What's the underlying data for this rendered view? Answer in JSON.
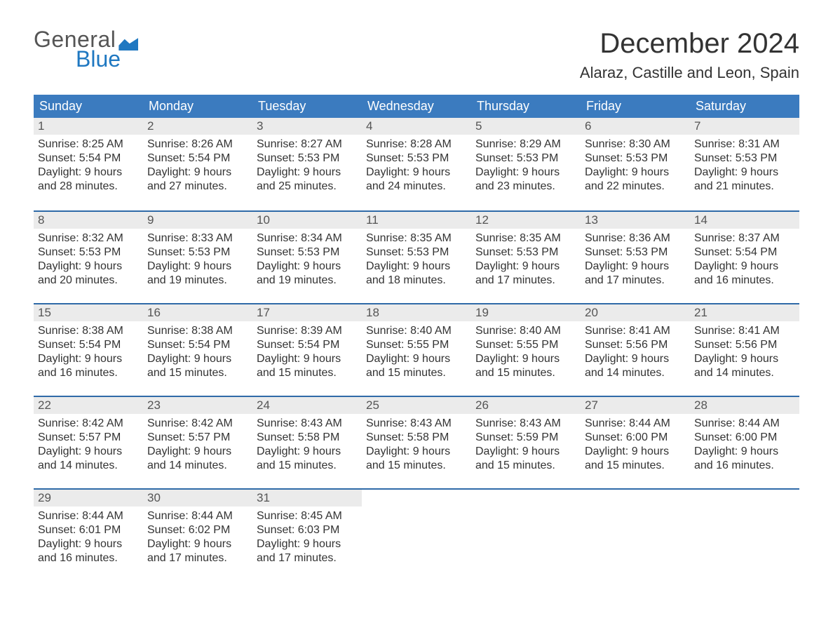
{
  "logo": {
    "word1": "General",
    "word2": "Blue"
  },
  "title": "December 2024",
  "location": "Alaraz, Castille and Leon, Spain",
  "colors": {
    "header_blue": "#3b7bbf",
    "separator_blue": "#2f6aa8",
    "daynum_bg": "#ebebeb",
    "logo_gray": "#555555",
    "logo_blue": "#1f78c1",
    "text": "#333333",
    "background": "#ffffff"
  },
  "day_names": [
    "Sunday",
    "Monday",
    "Tuesday",
    "Wednesday",
    "Thursday",
    "Friday",
    "Saturday"
  ],
  "labels": {
    "sunrise": "Sunrise:",
    "sunset": "Sunset:",
    "daylight": "Daylight:"
  },
  "weeks": [
    [
      {
        "day": "1",
        "sunrise": "8:25 AM",
        "sunset": "5:54 PM",
        "daylight": "9 hours and 28 minutes."
      },
      {
        "day": "2",
        "sunrise": "8:26 AM",
        "sunset": "5:54 PM",
        "daylight": "9 hours and 27 minutes."
      },
      {
        "day": "3",
        "sunrise": "8:27 AM",
        "sunset": "5:53 PM",
        "daylight": "9 hours and 25 minutes."
      },
      {
        "day": "4",
        "sunrise": "8:28 AM",
        "sunset": "5:53 PM",
        "daylight": "9 hours and 24 minutes."
      },
      {
        "day": "5",
        "sunrise": "8:29 AM",
        "sunset": "5:53 PM",
        "daylight": "9 hours and 23 minutes."
      },
      {
        "day": "6",
        "sunrise": "8:30 AM",
        "sunset": "5:53 PM",
        "daylight": "9 hours and 22 minutes."
      },
      {
        "day": "7",
        "sunrise": "8:31 AM",
        "sunset": "5:53 PM",
        "daylight": "9 hours and 21 minutes."
      }
    ],
    [
      {
        "day": "8",
        "sunrise": "8:32 AM",
        "sunset": "5:53 PM",
        "daylight": "9 hours and 20 minutes."
      },
      {
        "day": "9",
        "sunrise": "8:33 AM",
        "sunset": "5:53 PM",
        "daylight": "9 hours and 19 minutes."
      },
      {
        "day": "10",
        "sunrise": "8:34 AM",
        "sunset": "5:53 PM",
        "daylight": "9 hours and 19 minutes."
      },
      {
        "day": "11",
        "sunrise": "8:35 AM",
        "sunset": "5:53 PM",
        "daylight": "9 hours and 18 minutes."
      },
      {
        "day": "12",
        "sunrise": "8:35 AM",
        "sunset": "5:53 PM",
        "daylight": "9 hours and 17 minutes."
      },
      {
        "day": "13",
        "sunrise": "8:36 AM",
        "sunset": "5:53 PM",
        "daylight": "9 hours and 17 minutes."
      },
      {
        "day": "14",
        "sunrise": "8:37 AM",
        "sunset": "5:54 PM",
        "daylight": "9 hours and 16 minutes."
      }
    ],
    [
      {
        "day": "15",
        "sunrise": "8:38 AM",
        "sunset": "5:54 PM",
        "daylight": "9 hours and 16 minutes."
      },
      {
        "day": "16",
        "sunrise": "8:38 AM",
        "sunset": "5:54 PM",
        "daylight": "9 hours and 15 minutes."
      },
      {
        "day": "17",
        "sunrise": "8:39 AM",
        "sunset": "5:54 PM",
        "daylight": "9 hours and 15 minutes."
      },
      {
        "day": "18",
        "sunrise": "8:40 AM",
        "sunset": "5:55 PM",
        "daylight": "9 hours and 15 minutes."
      },
      {
        "day": "19",
        "sunrise": "8:40 AM",
        "sunset": "5:55 PM",
        "daylight": "9 hours and 15 minutes."
      },
      {
        "day": "20",
        "sunrise": "8:41 AM",
        "sunset": "5:56 PM",
        "daylight": "9 hours and 14 minutes."
      },
      {
        "day": "21",
        "sunrise": "8:41 AM",
        "sunset": "5:56 PM",
        "daylight": "9 hours and 14 minutes."
      }
    ],
    [
      {
        "day": "22",
        "sunrise": "8:42 AM",
        "sunset": "5:57 PM",
        "daylight": "9 hours and 14 minutes."
      },
      {
        "day": "23",
        "sunrise": "8:42 AM",
        "sunset": "5:57 PM",
        "daylight": "9 hours and 14 minutes."
      },
      {
        "day": "24",
        "sunrise": "8:43 AM",
        "sunset": "5:58 PM",
        "daylight": "9 hours and 15 minutes."
      },
      {
        "day": "25",
        "sunrise": "8:43 AM",
        "sunset": "5:58 PM",
        "daylight": "9 hours and 15 minutes."
      },
      {
        "day": "26",
        "sunrise": "8:43 AM",
        "sunset": "5:59 PM",
        "daylight": "9 hours and 15 minutes."
      },
      {
        "day": "27",
        "sunrise": "8:44 AM",
        "sunset": "6:00 PM",
        "daylight": "9 hours and 15 minutes."
      },
      {
        "day": "28",
        "sunrise": "8:44 AM",
        "sunset": "6:00 PM",
        "daylight": "9 hours and 16 minutes."
      }
    ],
    [
      {
        "day": "29",
        "sunrise": "8:44 AM",
        "sunset": "6:01 PM",
        "daylight": "9 hours and 16 minutes."
      },
      {
        "day": "30",
        "sunrise": "8:44 AM",
        "sunset": "6:02 PM",
        "daylight": "9 hours and 17 minutes."
      },
      {
        "day": "31",
        "sunrise": "8:45 AM",
        "sunset": "6:03 PM",
        "daylight": "9 hours and 17 minutes."
      },
      null,
      null,
      null,
      null
    ]
  ]
}
